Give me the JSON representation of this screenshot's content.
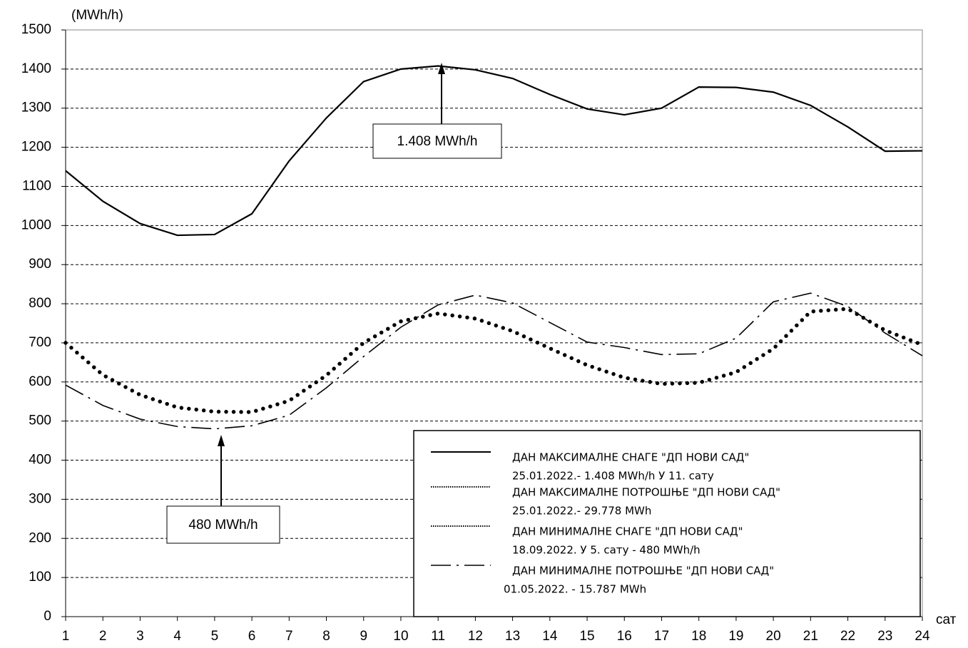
{
  "chart_data": {
    "type": "line",
    "y_label": "(MWh/h)",
    "x_label": "сат",
    "x": [
      1,
      2,
      3,
      4,
      5,
      6,
      7,
      8,
      9,
      10,
      11,
      12,
      13,
      14,
      15,
      16,
      17,
      18,
      19,
      20,
      21,
      22,
      23,
      24
    ],
    "xlim": [
      1,
      24
    ],
    "xticks": [
      1,
      2,
      3,
      4,
      5,
      6,
      7,
      8,
      9,
      10,
      11,
      12,
      13,
      14,
      15,
      16,
      17,
      18,
      19,
      20,
      21,
      22,
      23,
      24
    ],
    "ylim": [
      0,
      1500
    ],
    "yticks": [
      0,
      100,
      200,
      300,
      400,
      500,
      600,
      700,
      800,
      900,
      1000,
      1100,
      1200,
      1300,
      1400,
      1500
    ],
    "grid": true,
    "series": [
      {
        "style": "solid",
        "color": "#000000",
        "values": [
          1140,
          1062,
          1005,
          975,
          977,
          1030,
          1165,
          1275,
          1368,
          1400,
          1408,
          1398,
          1376,
          1335,
          1298,
          1283,
          1300,
          1354,
          1353,
          1341,
          1307,
          1252,
          1190,
          1191
        ]
      },
      {
        "style": "dotted",
        "color": "#000000",
        "values": [
          700,
          618,
          567,
          535,
          524,
          523,
          552,
          617,
          700,
          755,
          775,
          762,
          730,
          686,
          643,
          611,
          595,
          598,
          625,
          685,
          780,
          787,
          732,
          695
        ]
      },
      {
        "style": "dashdot",
        "color": "#000000",
        "values": [
          592,
          540,
          505,
          486,
          480,
          488,
          515,
          585,
          665,
          740,
          797,
          822,
          802,
          752,
          702,
          688,
          670,
          672,
          712,
          805,
          827,
          793,
          725,
          667
        ]
      }
    ],
    "annotations": [
      {
        "text": "1.408 MWh/h"
      },
      {
        "text": "480 MWh/h"
      }
    ],
    "legend": [
      {
        "style": "solid",
        "label": "ДАН МАКСИМАЛНЕ СНАГЕ  \"ДП НОВИ САД\"",
        "sublabel": "25.01.2022.- 1.408 MWh/h У 11. сату"
      },
      {
        "style": "fine-dotted",
        "label": "ДАН МАКСИМАЛНЕ  ПОТРОШЊЕ \"ДП НОВИ САД\"",
        "sublabel": "25.01.2022.- 29.778 MWh"
      },
      {
        "style": "fine-dotted",
        "label": "ДАН МИНИМАЛНЕ СНАГЕ \"ДП НОВИ САД\"",
        "sublabel": "18.09.2022. У 5. сату - 480 MWh/h"
      },
      {
        "style": "dashdot",
        "label": "ДАН МИНИМАЛНЕ  ПОТРОШЊЕ \"ДП НОВИ САД\"",
        "sublabel": "01.05.2022. - 15.787 MWh"
      }
    ]
  }
}
